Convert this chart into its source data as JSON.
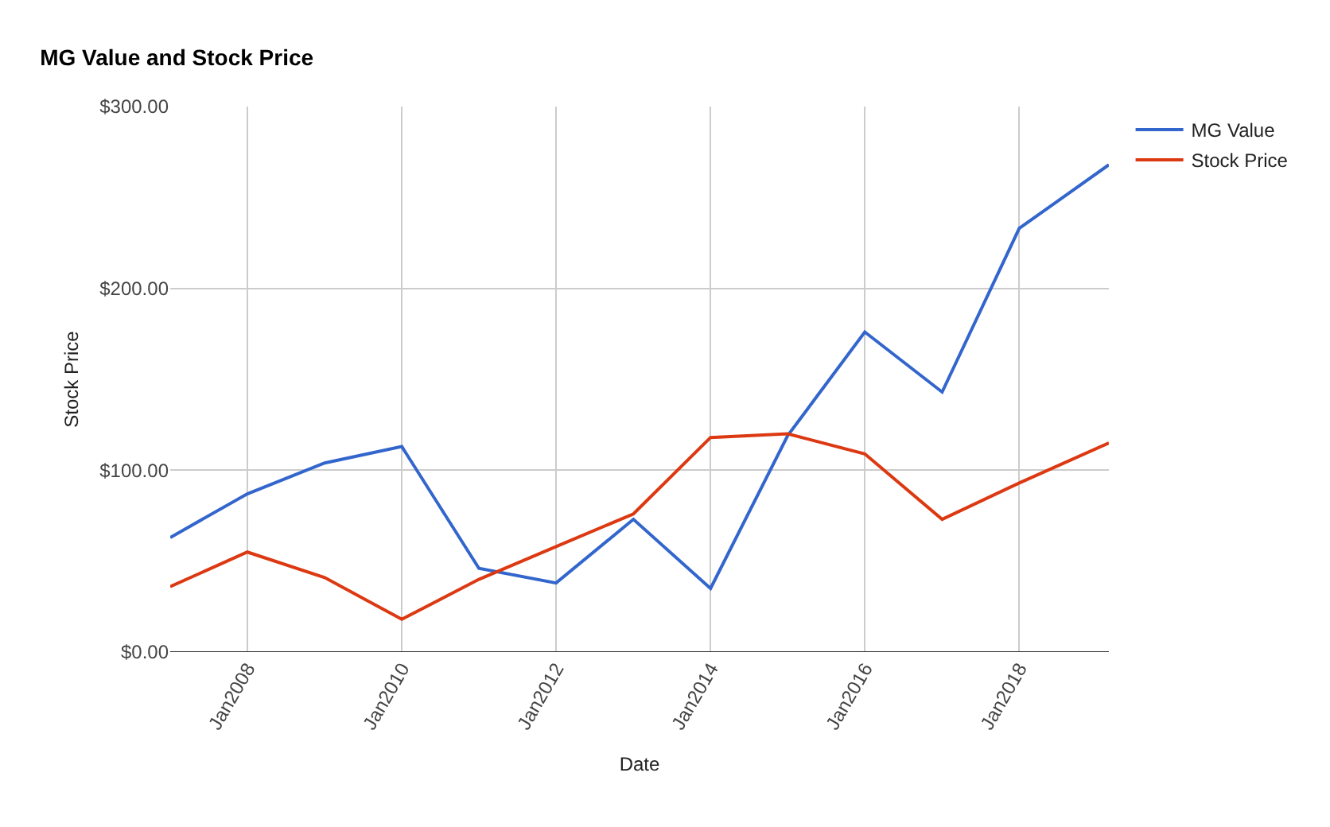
{
  "chart_data": {
    "type": "line",
    "title": "MG Value and Stock Price",
    "xlabel": "Date",
    "ylabel": "Stock Price",
    "x": [
      "2007-01-01",
      "2008-01-01",
      "2009-01-01",
      "2010-01-01",
      "2011-01-01",
      "2012-01-01",
      "2013-01-01",
      "2014-01-01",
      "2015-01-01",
      "2016-01-01",
      "2017-01-01",
      "2018-01-01",
      "2019-03-01"
    ],
    "series": [
      {
        "name": "MG Value",
        "color": "#3366cc",
        "values": [
          63,
          87,
          104,
          113,
          46,
          38,
          73,
          35,
          119,
          176,
          143,
          233,
          268
        ]
      },
      {
        "name": "Stock Price",
        "color": "#dc3912",
        "values": [
          36,
          55,
          41,
          18,
          40,
          58,
          76,
          118,
          120,
          109,
          73,
          93,
          115
        ]
      }
    ],
    "xlim": [
      "2007-01-01",
      "2019-03-01"
    ],
    "xticks": [
      {
        "value": "2008-01-01",
        "label": "Jan2008"
      },
      {
        "value": "2010-01-01",
        "label": "Jan2010"
      },
      {
        "value": "2012-01-01",
        "label": "Jan2012"
      },
      {
        "value": "2014-01-01",
        "label": "Jan2014"
      },
      {
        "value": "2016-01-01",
        "label": "Jan2016"
      },
      {
        "value": "2018-01-01",
        "label": "Jan2018"
      }
    ],
    "ylim": [
      0,
      300
    ],
    "yticks": [
      {
        "value": 0,
        "label": "$0.00"
      },
      {
        "value": 100,
        "label": "$100.00"
      },
      {
        "value": 200,
        "label": "$200.00"
      },
      {
        "value": 300,
        "label": "$300.00"
      }
    ],
    "grid": true,
    "legend": "top right",
    "marker": "none",
    "line_style": "solid"
  }
}
